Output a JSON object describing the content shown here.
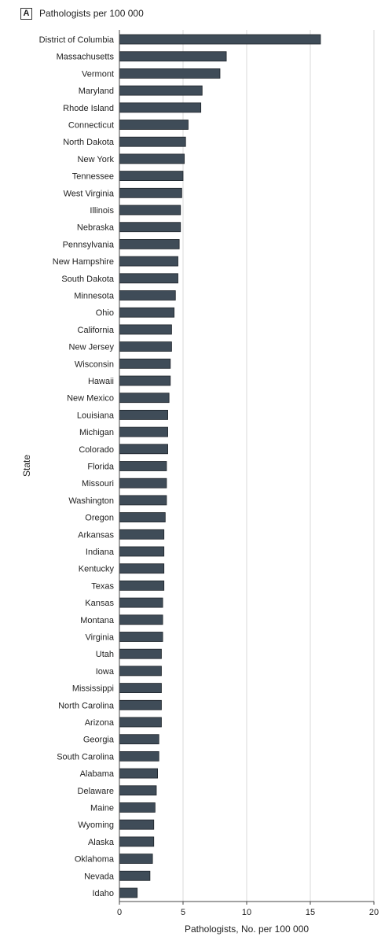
{
  "panel": {
    "letter": "A",
    "title": "Pathologists per 100 000"
  },
  "colors": {
    "bar_fill": "#3f4c58",
    "bar_stroke": "#1c2228",
    "grid": "#d9d9d9",
    "axis": "#444444"
  },
  "chart_data": {
    "type": "bar",
    "orientation": "horizontal",
    "title": "Pathologists per 100 000",
    "xlabel": "Pathologists, No. per 100 000",
    "ylabel": "State",
    "xlim": [
      0,
      20
    ],
    "xticks": [
      0,
      5,
      10,
      15,
      20
    ],
    "grid": true,
    "categories": [
      "District of Columbia",
      "Massachusetts",
      "Vermont",
      "Maryland",
      "Rhode Island",
      "Connecticut",
      "North Dakota",
      "New York",
      "Tennessee",
      "West Virginia",
      "Illinois",
      "Nebraska",
      "Pennsylvania",
      "New Hampshire",
      "South Dakota",
      "Minnesota",
      "Ohio",
      "California",
      "New Jersey",
      "Wisconsin",
      "Hawaii",
      "New Mexico",
      "Louisiana",
      "Michigan",
      "Colorado",
      "Florida",
      "Missouri",
      "Washington",
      "Oregon",
      "Arkansas",
      "Indiana",
      "Kentucky",
      "Texas",
      "Kansas",
      "Montana",
      "Virginia",
      "Utah",
      "Iowa",
      "Mississippi",
      "North Carolina",
      "Arizona",
      "Georgia",
      "South Carolina",
      "Alabama",
      "Delaware",
      "Maine",
      "Wyoming",
      "Alaska",
      "Oklahoma",
      "Nevada",
      "Idaho"
    ],
    "values": [
      15.8,
      8.4,
      7.9,
      6.5,
      6.4,
      5.4,
      5.2,
      5.1,
      5.0,
      4.9,
      4.8,
      4.8,
      4.7,
      4.6,
      4.6,
      4.4,
      4.3,
      4.1,
      4.1,
      4.0,
      4.0,
      3.9,
      3.8,
      3.8,
      3.8,
      3.7,
      3.7,
      3.7,
      3.6,
      3.5,
      3.5,
      3.5,
      3.5,
      3.4,
      3.4,
      3.4,
      3.3,
      3.3,
      3.3,
      3.3,
      3.3,
      3.1,
      3.1,
      3.0,
      2.9,
      2.8,
      2.7,
      2.7,
      2.6,
      2.4,
      1.4
    ]
  }
}
